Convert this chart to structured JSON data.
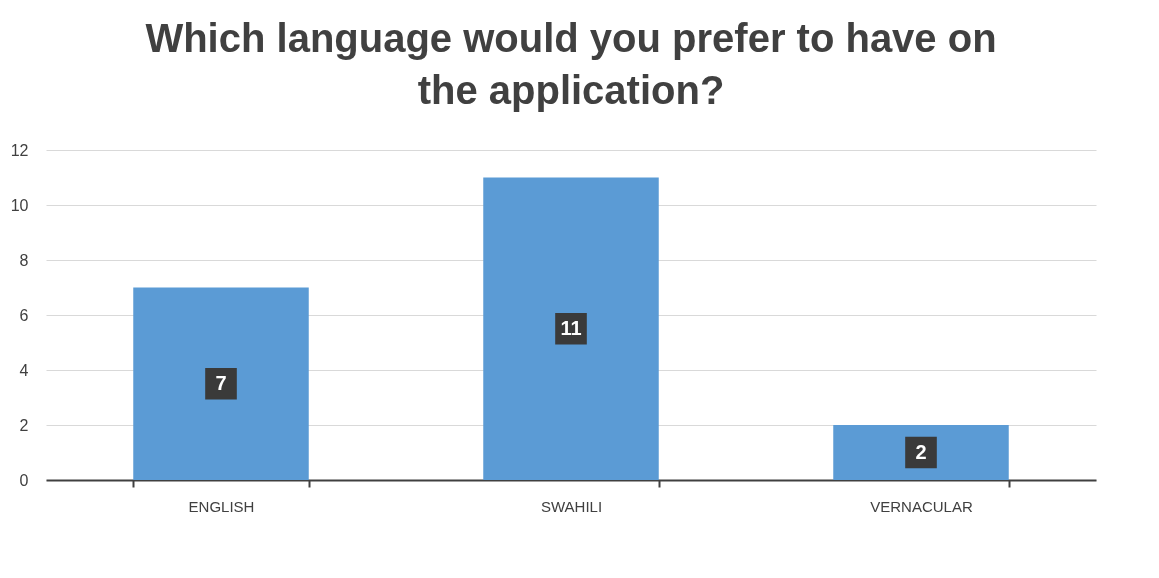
{
  "chart_data": {
    "type": "bar",
    "title": "Which language would you prefer to have on the application?",
    "categories": [
      "ENGLISH",
      "SWAHILI",
      "VERNACULAR"
    ],
    "values": [
      7,
      11,
      2
    ],
    "color": "#5b9bd5",
    "ylim": [
      0,
      12
    ],
    "yticks": [
      0,
      2,
      4,
      6,
      8,
      10,
      12
    ],
    "grid": "y",
    "data_labels": true
  }
}
